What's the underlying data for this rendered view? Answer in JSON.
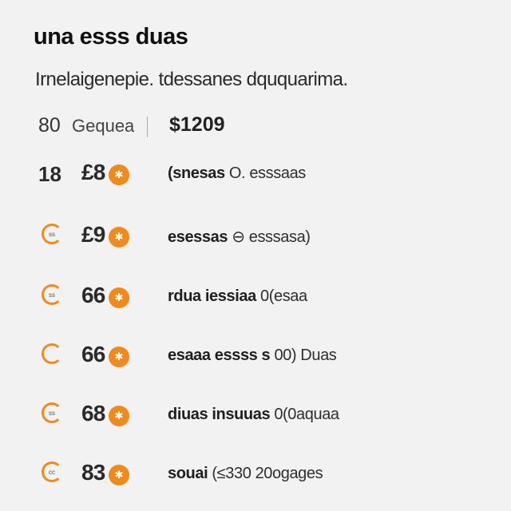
{
  "title": "una  esss duas",
  "subtitle": "Irnelaigenepie. tdessanes dququarima.",
  "header": {
    "count": "80",
    "label": "Gequea",
    "price": "$1209"
  },
  "rows": [
    {
      "lead_kind": "number",
      "lead_text": "18",
      "price": "£8",
      "coin_icon": "star-coin-icon",
      "desc_bold": "(snesas",
      "desc_rest": " O. esssaas"
    },
    {
      "lead_kind": "ring",
      "lead_text": "ss",
      "price": "£9",
      "coin_icon": "star-coin-icon",
      "desc_bold": "esessas",
      "desc_rest": " ⊖ esssasa)"
    },
    {
      "lead_kind": "ring",
      "lead_text": "ss",
      "price": "66",
      "coin_icon": "star-coin-icon",
      "desc_bold": "rdua iessiaa",
      "desc_rest": "  0(esaa"
    },
    {
      "lead_kind": "ring",
      "lead_text": "",
      "price": "66",
      "coin_icon": "star-coin-icon",
      "desc_bold": "esaaa essss s",
      "desc_rest": " 00) Duas"
    },
    {
      "lead_kind": "ring",
      "lead_text": "ss",
      "price": "68",
      "coin_icon": "star-coin-icon",
      "desc_bold": "diuas insuuas",
      "desc_rest": "  0(0aquaa"
    },
    {
      "lead_kind": "ring",
      "lead_text": "cc",
      "price": "83",
      "coin_icon": "star-coin-icon",
      "desc_bold": "souai",
      "desc_rest": "   (≤330  20ogages"
    }
  ],
  "colors": {
    "accent": "#f08a1c",
    "background": "#f2f2f2"
  }
}
